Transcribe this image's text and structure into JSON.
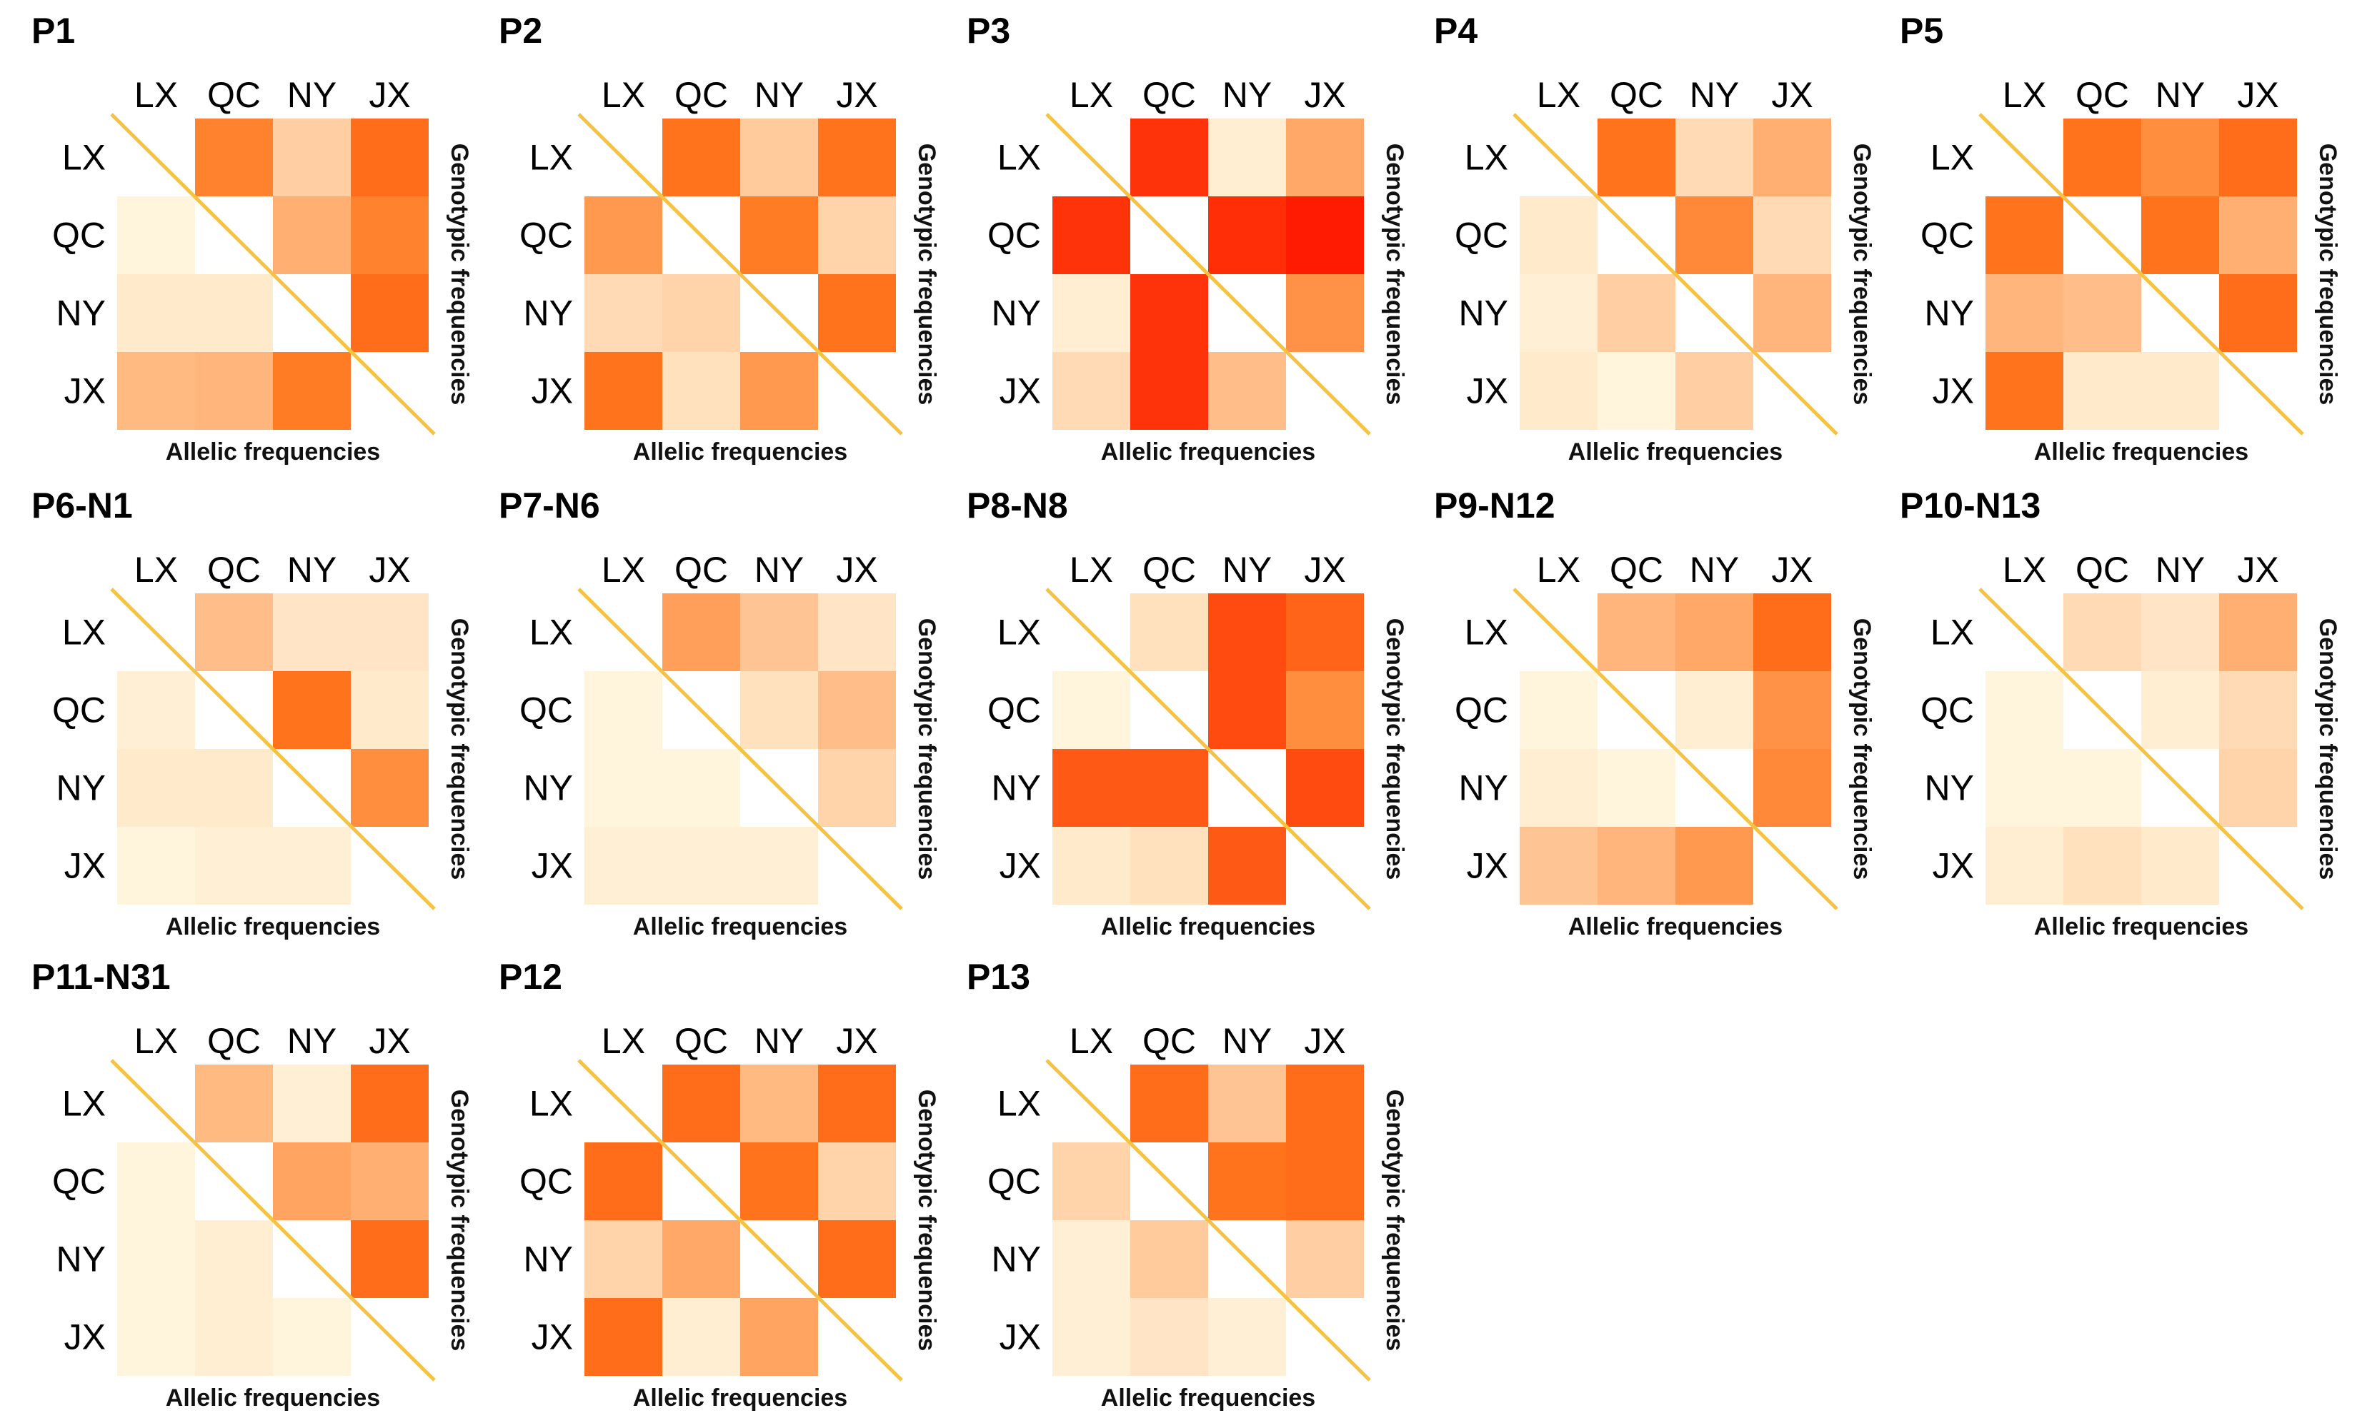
{
  "chart_data": {
    "type": "heatmap",
    "row_labels": [
      "LX",
      "QC",
      "NY",
      "JX"
    ],
    "col_labels": [
      "LX",
      "QC",
      "NY",
      "JX"
    ],
    "xlabel": "Allelic frequencies",
    "ylabel": "Genotypic frequencies",
    "colors": {
      "low": "#fffbe6",
      "high": "#ff1500",
      "diagonal": "#f5c242",
      "diagonal_cell": "#ffffff"
    },
    "value_scale": "relative 0-1 (no colorbar printed)",
    "panels": [
      {
        "title": "P1",
        "matrix": [
          [
            null,
            0.55,
            0.2,
            0.65
          ],
          [
            0.03,
            null,
            0.35,
            0.55
          ],
          [
            0.08,
            0.08,
            null,
            0.65
          ],
          [
            0.3,
            0.32,
            0.58,
            null
          ]
        ]
      },
      {
        "title": "P2",
        "matrix": [
          [
            null,
            0.62,
            0.22,
            0.62
          ],
          [
            0.45,
            null,
            0.58,
            0.18
          ],
          [
            0.15,
            0.18,
            null,
            0.62
          ],
          [
            0.62,
            0.12,
            0.45,
            null
          ]
        ]
      },
      {
        "title": "P3",
        "matrix": [
          [
            null,
            0.88,
            0.06,
            0.38
          ],
          [
            0.88,
            null,
            0.9,
            0.98
          ],
          [
            0.06,
            0.88,
            null,
            0.48
          ],
          [
            0.15,
            0.88,
            0.28,
            null
          ]
        ]
      },
      {
        "title": "P4",
        "matrix": [
          [
            null,
            0.62,
            0.15,
            0.35
          ],
          [
            0.08,
            null,
            0.52,
            0.15
          ],
          [
            0.05,
            0.2,
            null,
            0.32
          ],
          [
            0.08,
            0.03,
            0.2,
            null
          ]
        ]
      },
      {
        "title": "P5",
        "matrix": [
          [
            null,
            0.62,
            0.5,
            0.65
          ],
          [
            0.62,
            null,
            0.62,
            0.35
          ],
          [
            0.32,
            0.28,
            null,
            0.65
          ],
          [
            0.62,
            0.08,
            0.08,
            null
          ]
        ]
      },
      {
        "title": "P6-N1",
        "matrix": [
          [
            null,
            0.28,
            0.1,
            0.1
          ],
          [
            0.05,
            null,
            0.62,
            0.08
          ],
          [
            0.08,
            0.08,
            null,
            0.5
          ],
          [
            0.03,
            0.05,
            0.05,
            null
          ]
        ]
      },
      {
        "title": "P7-N6",
        "matrix": [
          [
            null,
            0.42,
            0.25,
            0.1
          ],
          [
            0.03,
            null,
            0.12,
            0.28
          ],
          [
            0.03,
            0.03,
            null,
            0.18
          ],
          [
            0.05,
            0.05,
            0.05,
            null
          ]
        ]
      },
      {
        "title": "P8-N8",
        "matrix": [
          [
            null,
            0.12,
            0.78,
            0.68
          ],
          [
            0.03,
            null,
            0.78,
            0.5
          ],
          [
            0.72,
            0.72,
            null,
            0.78
          ],
          [
            0.08,
            0.12,
            0.72,
            null
          ]
        ]
      },
      {
        "title": "P9-N12",
        "matrix": [
          [
            null,
            0.32,
            0.38,
            0.65
          ],
          [
            0.03,
            null,
            0.06,
            0.48
          ],
          [
            0.06,
            0.03,
            null,
            0.52
          ],
          [
            0.25,
            0.32,
            0.45,
            null
          ]
        ]
      },
      {
        "title": "P10-N13",
        "matrix": [
          [
            null,
            0.15,
            0.1,
            0.35
          ],
          [
            0.03,
            null,
            0.06,
            0.15
          ],
          [
            0.03,
            0.03,
            null,
            0.18
          ],
          [
            0.06,
            0.12,
            0.08,
            null
          ]
        ]
      },
      {
        "title": "P11-N31",
        "matrix": [
          [
            null,
            0.3,
            0.05,
            0.65
          ],
          [
            0.03,
            null,
            0.4,
            0.35
          ],
          [
            0.03,
            0.06,
            null,
            0.65
          ],
          [
            0.03,
            0.06,
            0.03,
            null
          ]
        ]
      },
      {
        "title": "P12",
        "matrix": [
          [
            null,
            0.65,
            0.3,
            0.65
          ],
          [
            0.65,
            null,
            0.62,
            0.18
          ],
          [
            0.18,
            0.38,
            null,
            0.65
          ],
          [
            0.65,
            0.06,
            0.4,
            null
          ]
        ]
      },
      {
        "title": "P13",
        "matrix": [
          [
            null,
            0.65,
            0.25,
            0.65
          ],
          [
            0.18,
            null,
            0.62,
            0.65
          ],
          [
            0.05,
            0.22,
            null,
            0.2
          ],
          [
            0.05,
            0.1,
            0.05,
            null
          ]
        ]
      }
    ]
  }
}
